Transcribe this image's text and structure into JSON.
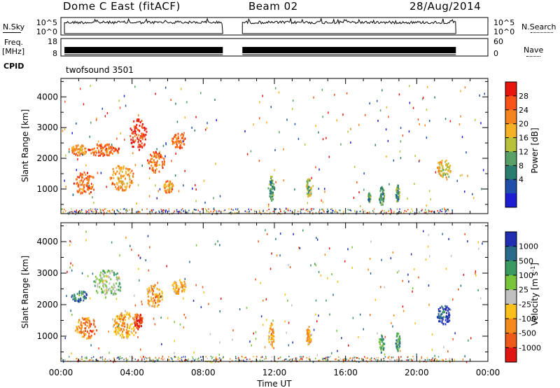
{
  "header": {
    "title": "Dome C East (fitACF)",
    "beam": "Beam 02",
    "date": "28/Aug/2014"
  },
  "left_labels": {
    "nsky": "N.Sky",
    "freq": "Freq.",
    "mhz": "[MHz]",
    "cpid": "CPID"
  },
  "right_labels": {
    "nsearch": "N.Search",
    "nave": "Nave"
  },
  "cpid_value": "twofsound 3501",
  "chart_data": [
    {
      "type": "line",
      "name": "noise-panel",
      "left_ticks": [
        "10^5",
        "10^0"
      ],
      "right_ticks": [
        "10^5",
        "10^0"
      ],
      "segments_hours": [
        [
          0.2,
          9.1
        ],
        [
          10.2,
          22.2
        ]
      ]
    },
    {
      "type": "line",
      "name": "frequency-nave-panel",
      "left_ticks": [
        "18",
        "8"
      ],
      "right_ticks": [
        "60",
        "0"
      ],
      "segments_hours": [
        [
          0.2,
          9.1
        ],
        [
          10.2,
          22.2
        ]
      ]
    },
    {
      "type": "heatmap",
      "name": "power-panel",
      "ylabel": "Slant Range [km]",
      "yticks": [
        1000,
        2000,
        3000,
        4000
      ],
      "ylim": [
        200,
        4600
      ],
      "xlim": [
        0,
        24
      ],
      "colorbar": {
        "label": "Power [dB]",
        "ticks": [
          "28",
          "24",
          "20",
          "16",
          "12",
          "8",
          "4"
        ],
        "colors": [
          "#e8140e",
          "#f8541a",
          "#f5841f",
          "#f5b225",
          "#b7c23a",
          "#58a066",
          "#2a7c70",
          "#1f4faa",
          "#1d1dd4"
        ]
      },
      "blobs": [
        {
          "t": 1.0,
          "r": 2300,
          "dt": 0.9,
          "dr": 180,
          "c": 3
        },
        {
          "t": 2.4,
          "r": 2300,
          "dt": 1.8,
          "dr": 200,
          "c": 2
        },
        {
          "t": 1.3,
          "r": 1200,
          "dt": 1.2,
          "dr": 380,
          "c": 2
        },
        {
          "t": 3.4,
          "r": 1400,
          "dt": 1.4,
          "dr": 420,
          "c": 3
        },
        {
          "t": 4.3,
          "r": 2800,
          "dt": 1.0,
          "dr": 500,
          "c": 1
        },
        {
          "t": 5.3,
          "r": 1900,
          "dt": 1.0,
          "dr": 350,
          "c": 2
        },
        {
          "t": 6.6,
          "r": 2600,
          "dt": 0.8,
          "dr": 250,
          "c": 2
        },
        {
          "t": 6.0,
          "r": 1100,
          "dt": 0.6,
          "dr": 200,
          "c": 3
        },
        {
          "t": 11.8,
          "r": 1050,
          "dt": 0.35,
          "dr": 400,
          "c": 6
        },
        {
          "t": 13.9,
          "r": 1050,
          "dt": 0.3,
          "dr": 320,
          "c": 5
        },
        {
          "t": 18.0,
          "r": 800,
          "dt": 0.3,
          "dr": 300,
          "c": 6
        },
        {
          "t": 18.9,
          "r": 850,
          "dt": 0.25,
          "dr": 300,
          "c": 6
        },
        {
          "t": 17.3,
          "r": 750,
          "dt": 0.15,
          "dr": 150,
          "c": 6
        },
        {
          "t": 21.5,
          "r": 1700,
          "dt": 0.8,
          "dr": 300,
          "c": 4
        }
      ]
    },
    {
      "type": "heatmap",
      "name": "velocity-panel",
      "ylabel": "Slant Range [km]",
      "yticks": [
        1000,
        2000,
        3000,
        4000
      ],
      "ylim": [
        200,
        4600
      ],
      "xlim": [
        0,
        24
      ],
      "xticks": [
        "00:00",
        "04:00",
        "08:00",
        "12:00",
        "16:00",
        "20:00",
        "00:00"
      ],
      "xlabel": "Time UT",
      "colorbar": {
        "label": "Velocity [m s",
        "label_sup": "-1",
        "label_end": "]",
        "ticks": [
          "1000",
          "500",
          "100",
          "25",
          "-25",
          "-100",
          "-500",
          "-1000"
        ],
        "colors": [
          "#2030b0",
          "#2a6a8a",
          "#3a9a62",
          "#78c43a",
          "#c0c0c0",
          "#f8c018",
          "#f58a1c",
          "#ee5a18",
          "#e01612"
        ]
      },
      "blobs": [
        {
          "t": 1.0,
          "r": 2300,
          "dt": 0.9,
          "dr": 180,
          "c": 2
        },
        {
          "t": 2.6,
          "r": 2700,
          "dt": 1.6,
          "dr": 450,
          "c": 4
        },
        {
          "t": 1.4,
          "r": 1300,
          "dt": 1.2,
          "dr": 350,
          "c": 7
        },
        {
          "t": 3.6,
          "r": 1400,
          "dt": 1.6,
          "dr": 450,
          "c": 6
        },
        {
          "t": 4.3,
          "r": 1500,
          "dt": 0.6,
          "dr": 250,
          "c": 8
        },
        {
          "t": 5.2,
          "r": 2300,
          "dt": 1.0,
          "dr": 350,
          "c": 6
        },
        {
          "t": 6.6,
          "r": 2600,
          "dt": 0.8,
          "dr": 250,
          "c": 6
        },
        {
          "t": 11.8,
          "r": 1050,
          "dt": 0.35,
          "dr": 400,
          "c": 6
        },
        {
          "t": 13.9,
          "r": 1050,
          "dt": 0.3,
          "dr": 320,
          "c": 6
        },
        {
          "t": 18.0,
          "r": 800,
          "dt": 0.3,
          "dr": 300,
          "c": 3
        },
        {
          "t": 18.9,
          "r": 850,
          "dt": 0.25,
          "dr": 300,
          "c": 3
        },
        {
          "t": 21.5,
          "r": 1700,
          "dt": 0.8,
          "dr": 300,
          "c": 1
        }
      ]
    }
  ]
}
